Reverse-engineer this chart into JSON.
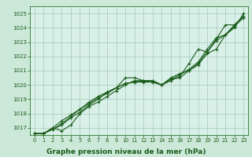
{
  "bg_color": "#cce8d8",
  "plot_bg_color": "#d8f0e8",
  "grid_color": "#a8c8b8",
  "line_color": "#1a5c1a",
  "marker_color": "#1a5c1a",
  "xlabel": "Graphe pression niveau de la mer (hPa)",
  "xlabel_color": "#1a5c1a",
  "tick_color": "#1a5c1a",
  "spine_color": "#2a7a2a",
  "ylim": [
    1016.5,
    1025.5
  ],
  "xlim": [
    -0.5,
    23.5
  ],
  "yticks": [
    1017,
    1018,
    1019,
    1020,
    1021,
    1022,
    1023,
    1024,
    1025
  ],
  "xticks": [
    0,
    1,
    2,
    3,
    4,
    5,
    6,
    7,
    8,
    9,
    10,
    11,
    12,
    13,
    14,
    15,
    16,
    17,
    18,
    19,
    20,
    21,
    22,
    23
  ],
  "series": [
    [
      1016.6,
      1016.6,
      1016.9,
      1017.3,
      1017.8,
      1018.3,
      1018.8,
      1019.2,
      1019.5,
      1019.8,
      1020.1,
      1020.2,
      1020.2,
      1020.2,
      1020.0,
      1020.5,
      1020.8,
      1021.0,
      1021.5,
      1022.3,
      1023.1,
      1023.5,
      1024.1,
      1024.7
    ],
    [
      1016.6,
      1016.6,
      1017.0,
      1016.8,
      1017.2,
      1018.0,
      1018.5,
      1018.8,
      1019.2,
      1019.6,
      1020.0,
      1020.3,
      1020.3,
      1020.3,
      1020.0,
      1020.3,
      1020.6,
      1021.5,
      1022.5,
      1022.3,
      1023.2,
      1024.2,
      1024.2,
      1024.8
    ],
    [
      1016.6,
      1016.6,
      1017.0,
      1017.5,
      1017.9,
      1018.3,
      1018.7,
      1019.1,
      1019.4,
      1019.8,
      1020.5,
      1020.5,
      1020.3,
      1020.3,
      1020.0,
      1020.4,
      1020.7,
      1021.1,
      1021.6,
      1022.5,
      1023.3,
      1023.5,
      1024.2,
      1024.8
    ],
    [
      1016.6,
      1016.6,
      1016.9,
      1017.2,
      1017.7,
      1018.1,
      1018.6,
      1019.0,
      1019.5,
      1019.8,
      1020.1,
      1020.2,
      1020.3,
      1020.2,
      1020.0,
      1020.4,
      1020.5,
      1021.0,
      1021.4,
      1022.2,
      1022.5,
      1023.5,
      1024.0,
      1025.0
    ]
  ],
  "figsize": [
    3.2,
    2.0
  ],
  "dpi": 100
}
